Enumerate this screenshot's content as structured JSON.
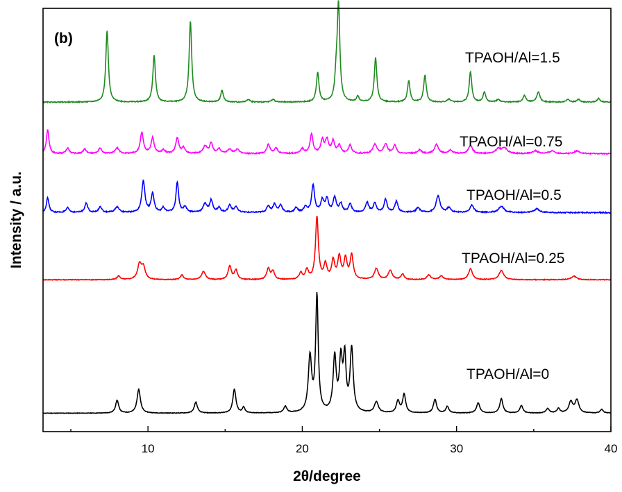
{
  "chart_data": {
    "type": "line",
    "panel_label": "(b)",
    "xlabel": "2θ/degree",
    "ylabel": "Intensity / a.u.",
    "xlim": [
      3.2,
      40
    ],
    "x_ticks": [
      10,
      20,
      30,
      40
    ],
    "x_tick_labels": [
      "10",
      "20",
      "30",
      "40"
    ],
    "y_ticks_shown": false,
    "grid": false,
    "legend": "inline labels beside each trace",
    "series": [
      {
        "name": "TPAOH/Al=0",
        "color": "#000000",
        "baseline": 0.0,
        "noise": 0.03,
        "peaks": [
          [
            8.0,
            1.4,
            0.12
          ],
          [
            9.4,
            2.6,
            0.13
          ],
          [
            13.1,
            1.2,
            0.12
          ],
          [
            15.6,
            2.6,
            0.12
          ],
          [
            16.2,
            0.6,
            0.1
          ],
          [
            18.9,
            0.7,
            0.12
          ],
          [
            20.5,
            6.0,
            0.13
          ],
          [
            20.95,
            12.6,
            0.1
          ],
          [
            22.1,
            5.9,
            0.12
          ],
          [
            22.5,
            5.5,
            0.12
          ],
          [
            22.75,
            5.6,
            0.1
          ],
          [
            23.2,
            6.9,
            0.12
          ],
          [
            24.8,
            1.2,
            0.15
          ],
          [
            26.2,
            1.3,
            0.12
          ],
          [
            26.6,
            2.0,
            0.12
          ],
          [
            28.6,
            1.5,
            0.12
          ],
          [
            29.4,
            0.7,
            0.12
          ],
          [
            31.4,
            1.1,
            0.13
          ],
          [
            32.9,
            1.6,
            0.12
          ],
          [
            34.2,
            0.8,
            0.12
          ],
          [
            35.9,
            0.5,
            0.12
          ],
          [
            36.6,
            0.5,
            0.12
          ],
          [
            37.4,
            1.2,
            0.15
          ],
          [
            37.8,
            1.4,
            0.15
          ],
          [
            39.4,
            0.4,
            0.12
          ]
        ]
      },
      {
        "name": "TPAOH/Al=0.25",
        "color": "#ff0000",
        "baseline": 14.5,
        "noise": 0.04,
        "peaks": [
          [
            8.1,
            0.4,
            0.12
          ],
          [
            9.45,
            1.6,
            0.15
          ],
          [
            9.7,
            1.3,
            0.15
          ],
          [
            12.2,
            0.5,
            0.12
          ],
          [
            13.6,
            0.9,
            0.15
          ],
          [
            15.3,
            1.5,
            0.12
          ],
          [
            15.7,
            1.0,
            0.12
          ],
          [
            17.8,
            1.2,
            0.12
          ],
          [
            18.1,
            0.9,
            0.12
          ],
          [
            19.9,
            0.7,
            0.12
          ],
          [
            20.3,
            1.0,
            0.12
          ],
          [
            20.95,
            6.8,
            0.11
          ],
          [
            21.5,
            1.6,
            0.12
          ],
          [
            22.0,
            2.0,
            0.12
          ],
          [
            22.4,
            2.4,
            0.12
          ],
          [
            22.8,
            2.2,
            0.12
          ],
          [
            23.2,
            2.6,
            0.12
          ],
          [
            24.8,
            1.2,
            0.15
          ],
          [
            25.7,
            1.0,
            0.15
          ],
          [
            26.5,
            0.6,
            0.12
          ],
          [
            28.2,
            0.5,
            0.15
          ],
          [
            29.0,
            0.4,
            0.15
          ],
          [
            30.9,
            1.2,
            0.15
          ],
          [
            32.9,
            1.0,
            0.18
          ],
          [
            37.6,
            0.4,
            0.2
          ]
        ]
      },
      {
        "name": "TPAOH/Al=0.5",
        "color": "#0000ff",
        "baseline": 21.8,
        "noise": 0.06,
        "peaks": [
          [
            3.5,
            1.6,
            0.1
          ],
          [
            4.8,
            0.5,
            0.12
          ],
          [
            6.0,
            1.0,
            0.12
          ],
          [
            6.9,
            0.6,
            0.12
          ],
          [
            8.0,
            0.6,
            0.15
          ],
          [
            9.7,
            3.4,
            0.12
          ],
          [
            10.3,
            2.0,
            0.12
          ],
          [
            11.0,
            0.5,
            0.12
          ],
          [
            11.9,
            3.3,
            0.1
          ],
          [
            12.4,
            0.6,
            0.12
          ],
          [
            13.7,
            0.9,
            0.15
          ],
          [
            14.1,
            1.3,
            0.12
          ],
          [
            14.6,
            0.5,
            0.12
          ],
          [
            15.3,
            0.8,
            0.12
          ],
          [
            15.7,
            0.6,
            0.12
          ],
          [
            17.8,
            0.7,
            0.12
          ],
          [
            18.2,
            0.9,
            0.12
          ],
          [
            18.6,
            0.8,
            0.12
          ],
          [
            19.6,
            0.5,
            0.12
          ],
          [
            20.2,
            0.6,
            0.12
          ],
          [
            20.7,
            3.0,
            0.11
          ],
          [
            21.3,
            1.3,
            0.12
          ],
          [
            21.6,
            1.4,
            0.12
          ],
          [
            22.1,
            1.6,
            0.12
          ],
          [
            22.5,
            0.9,
            0.12
          ],
          [
            23.1,
            0.9,
            0.12
          ],
          [
            24.2,
            1.1,
            0.12
          ],
          [
            24.7,
            1.0,
            0.12
          ],
          [
            25.4,
            1.4,
            0.12
          ],
          [
            26.1,
            1.2,
            0.12
          ],
          [
            27.5,
            0.5,
            0.15
          ],
          [
            28.8,
            1.8,
            0.15
          ],
          [
            29.5,
            0.5,
            0.15
          ],
          [
            31.0,
            0.8,
            0.15
          ],
          [
            32.9,
            0.7,
            0.2
          ],
          [
            35.2,
            0.4,
            0.2
          ]
        ]
      },
      {
        "name": "TPAOH/Al=0.75",
        "color": "#ff00ff",
        "baseline": 28.2,
        "noise": 0.06,
        "peaks": [
          [
            3.5,
            2.6,
            0.1
          ],
          [
            4.8,
            0.6,
            0.12
          ],
          [
            5.9,
            0.5,
            0.12
          ],
          [
            6.9,
            0.6,
            0.12
          ],
          [
            8.0,
            0.6,
            0.15
          ],
          [
            9.6,
            2.3,
            0.12
          ],
          [
            10.3,
            1.7,
            0.12
          ],
          [
            11.0,
            0.4,
            0.12
          ],
          [
            11.9,
            1.7,
            0.12
          ],
          [
            12.3,
            0.6,
            0.12
          ],
          [
            13.7,
            0.8,
            0.15
          ],
          [
            14.1,
            1.1,
            0.12
          ],
          [
            14.6,
            0.5,
            0.12
          ],
          [
            15.3,
            0.5,
            0.15
          ],
          [
            15.8,
            0.5,
            0.12
          ],
          [
            17.8,
            1.0,
            0.12
          ],
          [
            18.3,
            0.6,
            0.12
          ],
          [
            20.0,
            0.5,
            0.15
          ],
          [
            20.6,
            2.1,
            0.11
          ],
          [
            21.3,
            1.4,
            0.12
          ],
          [
            21.6,
            1.5,
            0.12
          ],
          [
            22.0,
            1.3,
            0.12
          ],
          [
            22.4,
            0.9,
            0.12
          ],
          [
            23.1,
            0.9,
            0.12
          ],
          [
            24.7,
            1.0,
            0.15
          ],
          [
            25.4,
            1.0,
            0.15
          ],
          [
            26.0,
            0.9,
            0.12
          ],
          [
            27.6,
            0.4,
            0.15
          ],
          [
            28.7,
            1.0,
            0.15
          ],
          [
            29.6,
            0.4,
            0.15
          ],
          [
            30.9,
            0.9,
            0.15
          ],
          [
            32.7,
            0.5,
            0.2
          ],
          [
            33.1,
            0.6,
            0.2
          ],
          [
            35.1,
            0.3,
            0.2
          ],
          [
            36.2,
            0.3,
            0.2
          ],
          [
            37.8,
            0.3,
            0.2
          ]
        ]
      },
      {
        "name": "TPAOH/Al=1.5",
        "color": "#1f8a1f",
        "baseline": 33.8,
        "noise": 0.05,
        "peaks": [
          [
            7.35,
            7.8,
            0.1
          ],
          [
            10.4,
            5.1,
            0.1
          ],
          [
            12.75,
            8.8,
            0.1
          ],
          [
            14.8,
            1.3,
            0.1
          ],
          [
            16.5,
            0.3,
            0.12
          ],
          [
            18.1,
            0.3,
            0.12
          ],
          [
            21.0,
            3.2,
            0.1
          ],
          [
            22.2,
            2.3,
            0.1
          ],
          [
            22.35,
            10.4,
            0.1
          ],
          [
            23.6,
            0.6,
            0.1
          ],
          [
            24.75,
            4.8,
            0.1
          ],
          [
            26.9,
            2.3,
            0.1
          ],
          [
            27.95,
            2.9,
            0.1
          ],
          [
            29.5,
            0.3,
            0.12
          ],
          [
            30.9,
            3.3,
            0.1
          ],
          [
            31.8,
            1.1,
            0.1
          ],
          [
            32.7,
            0.3,
            0.12
          ],
          [
            34.4,
            0.7,
            0.12
          ],
          [
            35.3,
            1.1,
            0.12
          ],
          [
            37.2,
            0.3,
            0.12
          ],
          [
            37.9,
            0.3,
            0.12
          ],
          [
            39.2,
            0.4,
            0.12
          ]
        ]
      }
    ]
  }
}
